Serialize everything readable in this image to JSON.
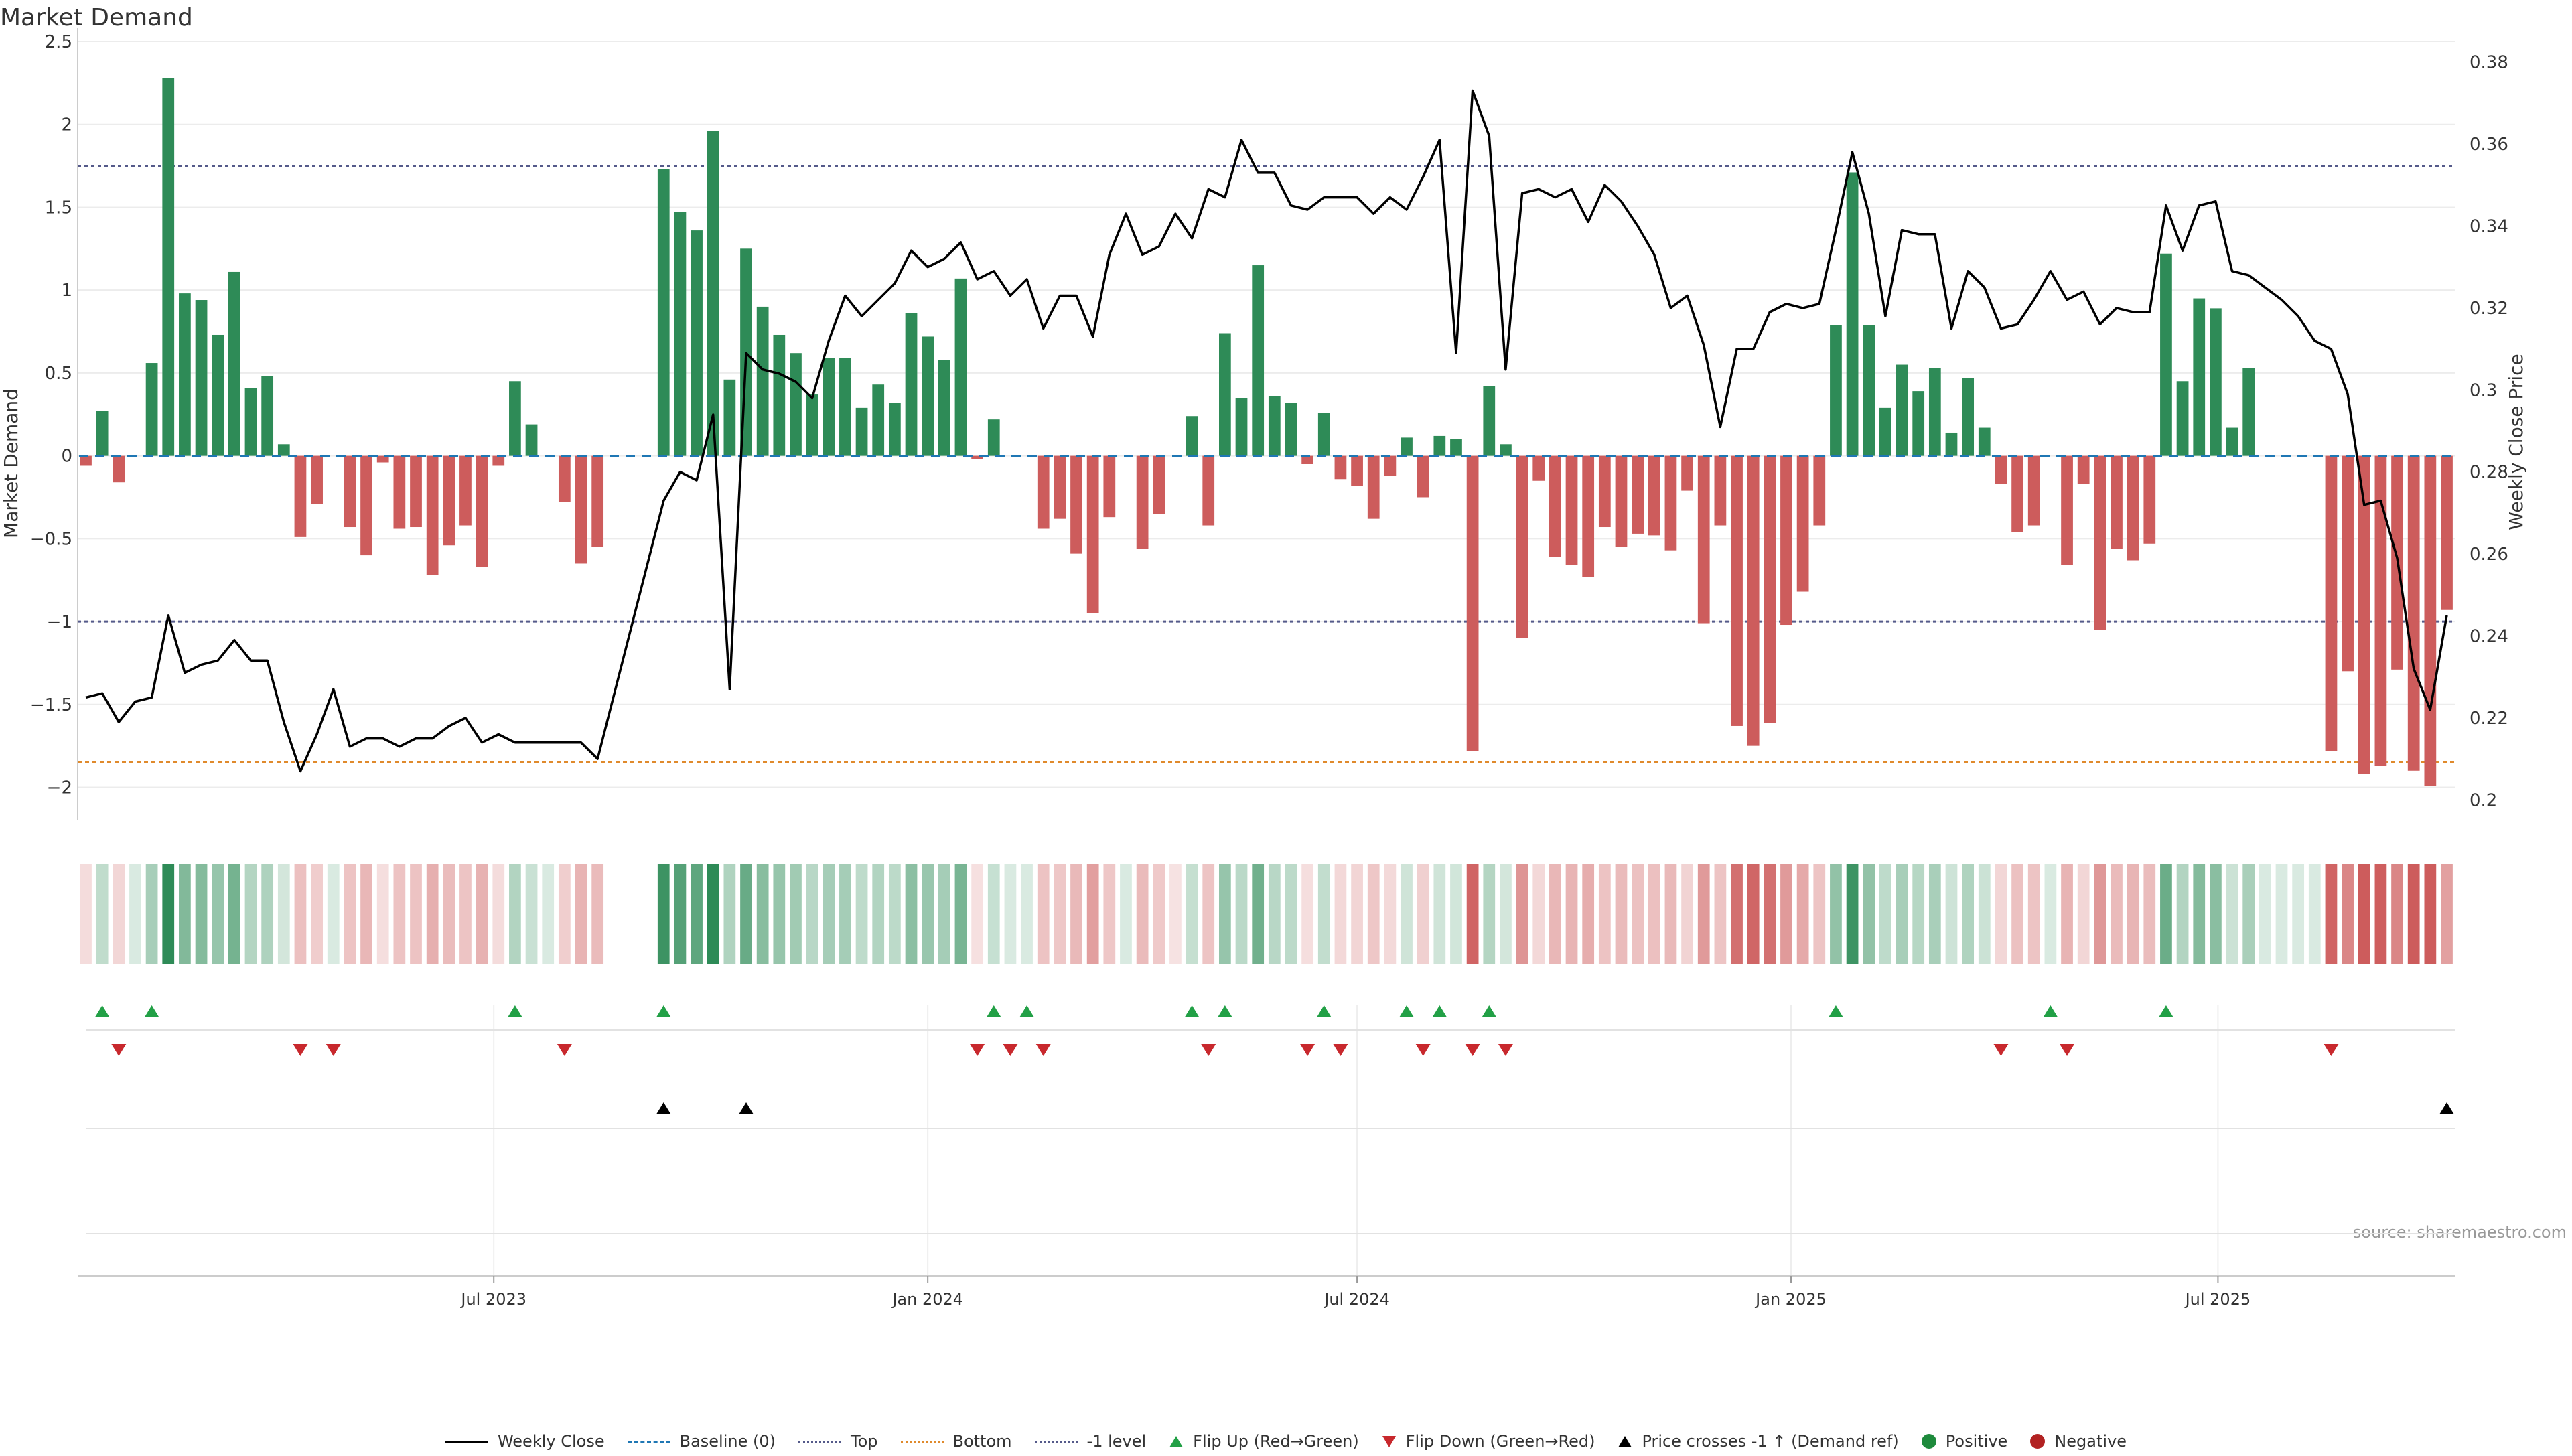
{
  "title": "Market Demand",
  "source": "source: sharemaestro.com",
  "legend": {
    "weekly_close": "Weekly Close",
    "baseline": "Baseline (0)",
    "top": "Top",
    "bottom": "Bottom",
    "minus1": "-1 level",
    "flip_up": "Flip Up (Red→Green)",
    "flip_down": "Flip Down (Green→Red)",
    "price_cross": "Price crosses -1 ↑ (Demand ref)",
    "positive": "Positive",
    "negative": "Negative"
  },
  "colors": {
    "positive_bar": "#2e8b57",
    "negative_bar": "#cd5c5c",
    "price_line": "#000000",
    "baseline": "#1f77b4",
    "top_line": "#555a8a",
    "bottom_line": "#e08a2c",
    "flip_up": "#22a046",
    "flip_down": "#c8282d",
    "cross": "#000000"
  },
  "chart_data": {
    "type": "bar",
    "title": "Market Demand",
    "ylabel": "Market Demand",
    "y2label": "Weekly Close Price",
    "ylim": [
      -2.2,
      2.5
    ],
    "y2lim": [
      0.195,
      0.385
    ],
    "yticks": [
      2.5,
      2,
      1.5,
      1,
      0.5,
      0,
      -0.5,
      -1,
      -1.5,
      -2
    ],
    "yticklabels": [
      "2.5",
      "2",
      "1.5",
      "1",
      "0.5",
      "0",
      "−0.5",
      "−1",
      "−1.5",
      "−2"
    ],
    "y2ticks": [
      0.38,
      0.36,
      0.34,
      0.32,
      0.3,
      0.28,
      0.26,
      0.24,
      0.22,
      0.2
    ],
    "y2ticklabels": [
      "0.38",
      "0.36",
      "0.34",
      "0.32",
      "0.3",
      "0.28",
      "0.26",
      "0.24",
      "0.22",
      "0.2"
    ],
    "x_start": "2023-01-09",
    "x_end": "2025-10-06",
    "xticks": [
      "2023-07-01",
      "2024-01-01",
      "2024-07-01",
      "2025-01-01",
      "2025-07-01"
    ],
    "xticklabels": [
      "Jul 2023",
      "Jan 2024",
      "Jul 2024",
      "Jan 2025",
      "Jul 2025"
    ],
    "reference_levels": {
      "baseline": 0,
      "top": 1.75,
      "bottom": -1.85,
      "minus1": -1
    },
    "grid": true,
    "legend_position": "bottom-center",
    "weeks": [
      {
        "date": "2023-01-09",
        "demand": -0.06,
        "close": 0.225
      },
      {
        "date": "2023-01-16",
        "demand": 0.27,
        "close": 0.226
      },
      {
        "date": "2023-01-23",
        "demand": -0.16,
        "close": 0.219
      },
      {
        "date": "2023-01-30",
        "demand": 0.0,
        "close": 0.224
      },
      {
        "date": "2023-02-06",
        "demand": 0.56,
        "close": 0.225
      },
      {
        "date": "2023-02-13",
        "demand": 2.28,
        "close": 0.245
      },
      {
        "date": "2023-02-20",
        "demand": 0.98,
        "close": 0.231
      },
      {
        "date": "2023-02-27",
        "demand": 0.94,
        "close": 0.233
      },
      {
        "date": "2023-03-06",
        "demand": 0.73,
        "close": 0.234
      },
      {
        "date": "2023-03-13",
        "demand": 1.11,
        "close": 0.239
      },
      {
        "date": "2023-03-20",
        "demand": 0.41,
        "close": 0.234
      },
      {
        "date": "2023-03-27",
        "demand": 0.48,
        "close": 0.234
      },
      {
        "date": "2023-04-03",
        "demand": 0.07,
        "close": 0.219
      },
      {
        "date": "2023-04-10",
        "demand": -0.49,
        "close": 0.207
      },
      {
        "date": "2023-04-17",
        "demand": -0.29,
        "close": 0.216
      },
      {
        "date": "2023-04-24",
        "demand": 0.0,
        "close": 0.227
      },
      {
        "date": "2023-05-01",
        "demand": -0.43,
        "close": 0.213
      },
      {
        "date": "2023-05-08",
        "demand": -0.6,
        "close": 0.215
      },
      {
        "date": "2023-05-15",
        "demand": -0.04,
        "close": 0.215
      },
      {
        "date": "2023-05-22",
        "demand": -0.44,
        "close": 0.213
      },
      {
        "date": "2023-05-29",
        "demand": -0.43,
        "close": 0.215
      },
      {
        "date": "2023-06-05",
        "demand": -0.72,
        "close": 0.215
      },
      {
        "date": "2023-06-12",
        "demand": -0.54,
        "close": 0.218
      },
      {
        "date": "2023-06-19",
        "demand": -0.42,
        "close": 0.22
      },
      {
        "date": "2023-06-26",
        "demand": -0.67,
        "close": 0.214
      },
      {
        "date": "2023-07-03",
        "demand": -0.06,
        "close": 0.216
      },
      {
        "date": "2023-07-10",
        "demand": 0.45,
        "close": 0.214
      },
      {
        "date": "2023-07-17",
        "demand": 0.19,
        "close": 0.214
      },
      {
        "date": "2023-07-24",
        "demand": 0.0,
        "close": 0.214
      },
      {
        "date": "2023-07-31",
        "demand": -0.28,
        "close": 0.214
      },
      {
        "date": "2023-08-07",
        "demand": -0.65,
        "close": 0.214
      },
      {
        "date": "2023-08-14",
        "demand": -0.55,
        "close": 0.21
      },
      {
        "date": "2023-09-11",
        "demand": 1.73,
        "close": 0.273
      },
      {
        "date": "2023-09-18",
        "demand": 1.47,
        "close": 0.28
      },
      {
        "date": "2023-09-25",
        "demand": 1.36,
        "close": 0.278
      },
      {
        "date": "2023-10-02",
        "demand": 1.96,
        "close": 0.294
      },
      {
        "date": "2023-10-09",
        "demand": 0.46,
        "close": 0.227
      },
      {
        "date": "2023-10-16",
        "demand": 1.25,
        "close": 0.309
      },
      {
        "date": "2023-10-23",
        "demand": 0.9,
        "close": 0.305
      },
      {
        "date": "2023-10-30",
        "demand": 0.73,
        "close": 0.304
      },
      {
        "date": "2023-11-06",
        "demand": 0.62,
        "close": 0.302
      },
      {
        "date": "2023-11-13",
        "demand": 0.37,
        "close": 0.298
      },
      {
        "date": "2023-11-20",
        "demand": 0.59,
        "close": 0.312
      },
      {
        "date": "2023-11-27",
        "demand": 0.59,
        "close": 0.323
      },
      {
        "date": "2023-12-04",
        "demand": 0.29,
        "close": 0.318
      },
      {
        "date": "2023-12-11",
        "demand": 0.43,
        "close": 0.322
      },
      {
        "date": "2023-12-18",
        "demand": 0.32,
        "close": 0.326
      },
      {
        "date": "2023-12-25",
        "demand": 0.86,
        "close": 0.334
      },
      {
        "date": "2024-01-01",
        "demand": 0.72,
        "close": 0.33
      },
      {
        "date": "2024-01-08",
        "demand": 0.58,
        "close": 0.332
      },
      {
        "date": "2024-01-15",
        "demand": 1.07,
        "close": 0.336
      },
      {
        "date": "2024-01-22",
        "demand": -0.02,
        "close": 0.327
      },
      {
        "date": "2024-01-29",
        "demand": 0.22,
        "close": 0.329
      },
      {
        "date": "2024-02-05",
        "demand": 0.0,
        "close": 0.323
      },
      {
        "date": "2024-02-12",
        "demand": 0.01,
        "close": 0.327
      },
      {
        "date": "2024-02-19",
        "demand": -0.44,
        "close": 0.315
      },
      {
        "date": "2024-02-26",
        "demand": -0.38,
        "close": 0.323
      },
      {
        "date": "2024-03-04",
        "demand": -0.59,
        "close": 0.323
      },
      {
        "date": "2024-03-11",
        "demand": -0.95,
        "close": 0.313
      },
      {
        "date": "2024-03-18",
        "demand": -0.37,
        "close": 0.333
      },
      {
        "date": "2024-03-25",
        "demand": 0.0,
        "close": 0.343
      },
      {
        "date": "2024-04-01",
        "demand": -0.56,
        "close": 0.333
      },
      {
        "date": "2024-04-08",
        "demand": -0.35,
        "close": 0.335
      },
      {
        "date": "2024-04-15",
        "demand": -0.01,
        "close": 0.343
      },
      {
        "date": "2024-04-22",
        "demand": 0.24,
        "close": 0.337
      },
      {
        "date": "2024-04-29",
        "demand": -0.42,
        "close": 0.349
      },
      {
        "date": "2024-05-06",
        "demand": 0.74,
        "close": 0.347
      },
      {
        "date": "2024-05-13",
        "demand": 0.35,
        "close": 0.361
      },
      {
        "date": "2024-05-20",
        "demand": 1.15,
        "close": 0.353
      },
      {
        "date": "2024-05-27",
        "demand": 0.36,
        "close": 0.353
      },
      {
        "date": "2024-06-03",
        "demand": 0.32,
        "close": 0.345
      },
      {
        "date": "2024-06-10",
        "demand": -0.05,
        "close": 0.344
      },
      {
        "date": "2024-06-17",
        "demand": 0.26,
        "close": 0.347
      },
      {
        "date": "2024-06-24",
        "demand": -0.14,
        "close": 0.347
      },
      {
        "date": "2024-07-01",
        "demand": -0.18,
        "close": 0.347
      },
      {
        "date": "2024-07-08",
        "demand": -0.38,
        "close": 0.343
      },
      {
        "date": "2024-07-15",
        "demand": -0.12,
        "close": 0.347
      },
      {
        "date": "2024-07-22",
        "demand": 0.11,
        "close": 0.344
      },
      {
        "date": "2024-07-29",
        "demand": -0.25,
        "close": 0.352
      },
      {
        "date": "2024-08-05",
        "demand": 0.12,
        "close": 0.361
      },
      {
        "date": "2024-08-12",
        "demand": 0.1,
        "close": 0.309
      },
      {
        "date": "2024-08-19",
        "demand": -1.78,
        "close": 0.373
      },
      {
        "date": "2024-08-26",
        "demand": 0.42,
        "close": 0.362
      },
      {
        "date": "2024-09-02",
        "demand": 0.07,
        "close": 0.305
      },
      {
        "date": "2024-09-09",
        "demand": -1.1,
        "close": 0.348
      },
      {
        "date": "2024-09-16",
        "demand": -0.15,
        "close": 0.349
      },
      {
        "date": "2024-09-23",
        "demand": -0.61,
        "close": 0.347
      },
      {
        "date": "2024-09-30",
        "demand": -0.66,
        "close": 0.349
      },
      {
        "date": "2024-10-07",
        "demand": -0.73,
        "close": 0.341
      },
      {
        "date": "2024-10-14",
        "demand": -0.43,
        "close": 0.35
      },
      {
        "date": "2024-10-21",
        "demand": -0.55,
        "close": 0.346
      },
      {
        "date": "2024-10-28",
        "demand": -0.47,
        "close": 0.34
      },
      {
        "date": "2024-11-04",
        "demand": -0.48,
        "close": 0.333
      },
      {
        "date": "2024-11-11",
        "demand": -0.57,
        "close": 0.32
      },
      {
        "date": "2024-11-18",
        "demand": -0.21,
        "close": 0.323
      },
      {
        "date": "2024-11-25",
        "demand": -1.01,
        "close": 0.311
      },
      {
        "date": "2024-12-02",
        "demand": -0.42,
        "close": 0.291
      },
      {
        "date": "2024-12-09",
        "demand": -1.63,
        "close": 0.31
      },
      {
        "date": "2024-12-16",
        "demand": -1.75,
        "close": 0.31
      },
      {
        "date": "2024-12-23",
        "demand": -1.61,
        "close": 0.319
      },
      {
        "date": "2024-12-30",
        "demand": -1.02,
        "close": 0.321
      },
      {
        "date": "2025-01-06",
        "demand": -0.82,
        "close": 0.32
      },
      {
        "date": "2025-01-13",
        "demand": -0.42,
        "close": 0.321
      },
      {
        "date": "2025-01-20",
        "demand": 0.79,
        "close": 0.339
      },
      {
        "date": "2025-01-27",
        "demand": 1.71,
        "close": 0.358
      },
      {
        "date": "2025-02-03",
        "demand": 0.79,
        "close": 0.343
      },
      {
        "date": "2025-02-10",
        "demand": 0.29,
        "close": 0.318
      },
      {
        "date": "2025-02-17",
        "demand": 0.55,
        "close": 0.339
      },
      {
        "date": "2025-02-24",
        "demand": 0.39,
        "close": 0.338
      },
      {
        "date": "2025-03-03",
        "demand": 0.53,
        "close": 0.338
      },
      {
        "date": "2025-03-10",
        "demand": 0.14,
        "close": 0.315
      },
      {
        "date": "2025-03-17",
        "demand": 0.47,
        "close": 0.329
      },
      {
        "date": "2025-03-24",
        "demand": 0.17,
        "close": 0.325
      },
      {
        "date": "2025-03-31",
        "demand": -0.17,
        "close": 0.315
      },
      {
        "date": "2025-04-07",
        "demand": -0.46,
        "close": 0.316
      },
      {
        "date": "2025-04-14",
        "demand": -0.42,
        "close": 0.322
      },
      {
        "date": "2025-04-21",
        "demand": 0.0,
        "close": 0.329
      },
      {
        "date": "2025-04-28",
        "demand": -0.66,
        "close": 0.322
      },
      {
        "date": "2025-05-05",
        "demand": -0.17,
        "close": 0.324
      },
      {
        "date": "2025-05-12",
        "demand": -1.05,
        "close": 0.316
      },
      {
        "date": "2025-05-19",
        "demand": -0.56,
        "close": 0.32
      },
      {
        "date": "2025-05-26",
        "demand": -0.63,
        "close": 0.319
      },
      {
        "date": "2025-06-02",
        "demand": -0.53,
        "close": 0.319
      },
      {
        "date": "2025-06-09",
        "demand": 1.22,
        "close": 0.345
      },
      {
        "date": "2025-06-16",
        "demand": 0.45,
        "close": 0.334
      },
      {
        "date": "2025-06-23",
        "demand": 0.95,
        "close": 0.345
      },
      {
        "date": "2025-06-30",
        "demand": 0.89,
        "close": 0.346
      },
      {
        "date": "2025-07-07",
        "demand": 0.17,
        "close": 0.329
      },
      {
        "date": "2025-07-14",
        "demand": 0.53,
        "close": 0.328
      },
      {
        "date": "2025-07-21",
        "demand": 0.0,
        "close": 0.325
      },
      {
        "date": "2025-07-28",
        "demand": 0.0,
        "close": 0.322
      },
      {
        "date": "2025-08-04",
        "demand": 0.0,
        "close": 0.318
      },
      {
        "date": "2025-08-11",
        "demand": 0.0,
        "close": 0.312
      },
      {
        "date": "2025-08-18",
        "demand": -1.78,
        "close": 0.31
      },
      {
        "date": "2025-08-25",
        "demand": -1.3,
        "close": 0.299
      },
      {
        "date": "2025-09-01",
        "demand": -1.92,
        "close": 0.272
      },
      {
        "date": "2025-09-08",
        "demand": -1.87,
        "close": 0.273
      },
      {
        "date": "2025-09-15",
        "demand": -1.29,
        "close": 0.259
      },
      {
        "date": "2025-09-22",
        "demand": -1.9,
        "close": 0.232
      },
      {
        "date": "2025-09-29",
        "demand": -1.99,
        "close": 0.222
      },
      {
        "date": "2025-10-06",
        "demand": -0.93,
        "close": 0.245
      }
    ],
    "flip_up": [
      "2023-01-16",
      "2023-02-06",
      "2023-07-10",
      "2023-09-11",
      "2024-01-29",
      "2024-02-12",
      "2024-04-22",
      "2024-05-06",
      "2024-06-17",
      "2024-07-22",
      "2024-08-05",
      "2024-08-26",
      "2025-01-20",
      "2025-04-21",
      "2025-06-09"
    ],
    "flip_down": [
      "2023-01-23",
      "2023-04-10",
      "2023-04-24",
      "2023-07-31",
      "2024-01-22",
      "2024-02-05",
      "2024-02-19",
      "2024-04-29",
      "2024-06-10",
      "2024-06-24",
      "2024-07-29",
      "2024-08-19",
      "2024-09-02",
      "2025-03-31",
      "2025-04-28",
      "2025-08-18"
    ],
    "price_cross": [
      "2023-09-11",
      "2023-10-16",
      "2025-10-06"
    ]
  }
}
